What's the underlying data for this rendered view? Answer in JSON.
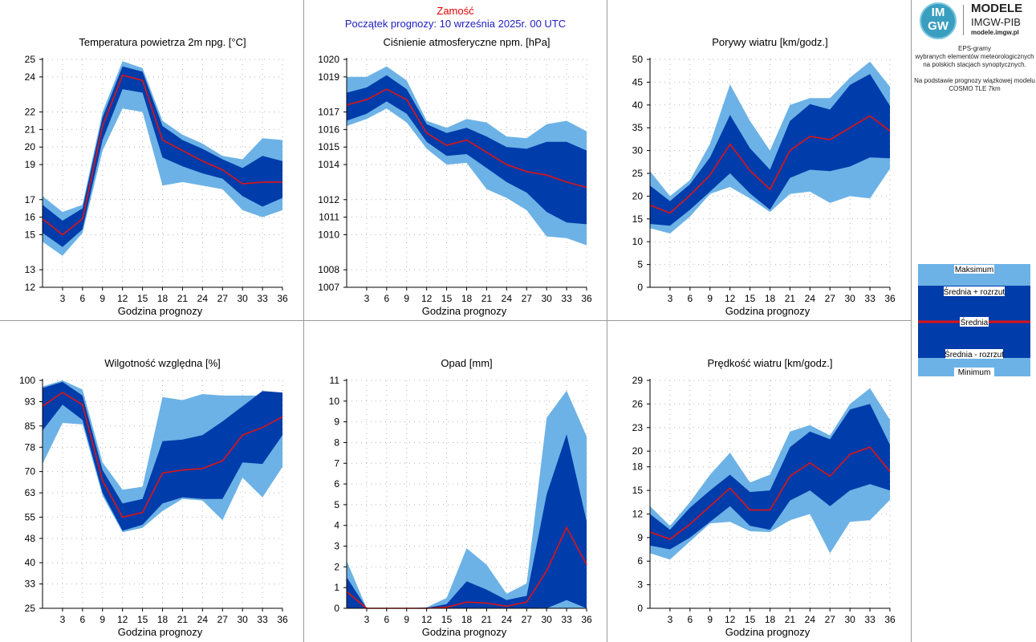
{
  "header": {
    "location": "Zamość",
    "forecast_start": "Początek prognozy: 10 września 2025r. 00 UTC"
  },
  "branding": {
    "logo_text_top": "IM",
    "logo_text_bottom": "GW",
    "name": "MODELE",
    "org": "IMGW-PIB",
    "url": "modele.imgw.pl"
  },
  "description": {
    "line1": "EPS-gramy",
    "line2": "wybranych elementów meteorologicznych",
    "line3": "na polskich stacjach synoptycznych.",
    "line4": "Na podstawie prognozy wiązkowej modelu",
    "line5": "COSMO TLE 7km"
  },
  "legend": {
    "max": "Maksimum",
    "mean_plus": "Średnia + rozrzut",
    "mean": "Średnia",
    "mean_minus": "Średnia - rozrzut",
    "min": "Minimum"
  },
  "colors": {
    "range_fill": "#6cb2e6",
    "spread_fill": "#003caa",
    "mean_line": "#e01414",
    "grid_dots": "#b4b4b4",
    "header_red": "#e00000",
    "header_blue": "#2020c0"
  },
  "chart_data": [
    {
      "type": "area",
      "title": "Temperatura powietrza 2m npg. [°C]",
      "xlabel": "Godzina prognozy",
      "x": [
        0,
        3,
        6,
        9,
        12,
        15,
        18,
        21,
        24,
        27,
        30,
        33,
        36
      ],
      "xticks": [
        3,
        6,
        9,
        12,
        15,
        18,
        21,
        24,
        27,
        30,
        33,
        36
      ],
      "ylim": [
        12,
        25
      ],
      "yticks": [
        "12",
        "13",
        "15",
        "16",
        "17",
        "19",
        "20",
        "21",
        "22",
        "24",
        "25"
      ],
      "series": [
        {
          "name": "Maksimum",
          "values": [
            17.2,
            16.3,
            16.7,
            22.0,
            24.9,
            24.5,
            21.5,
            20.7,
            20.2,
            19.5,
            19.3,
            20.5,
            20.4
          ]
        },
        {
          "name": "Średnia + rozrzut",
          "values": [
            16.7,
            15.8,
            16.5,
            21.7,
            24.6,
            24.3,
            21.2,
            20.4,
            19.9,
            19.3,
            18.8,
            19.5,
            19.2
          ]
        },
        {
          "name": "Średnia",
          "values": [
            15.9,
            15.0,
            15.9,
            21.2,
            24.1,
            23.8,
            20.4,
            19.8,
            19.2,
            18.7,
            17.9,
            18.0,
            18.0
          ]
        },
        {
          "name": "Średnia - rozrzut",
          "values": [
            15.1,
            14.3,
            15.3,
            20.4,
            23.3,
            23.1,
            19.4,
            18.9,
            18.5,
            18.2,
            17.2,
            16.6,
            17.1
          ]
        },
        {
          "name": "Minimum",
          "values": [
            14.6,
            13.8,
            15.1,
            19.8,
            22.2,
            22.0,
            17.8,
            18.0,
            17.8,
            17.6,
            16.4,
            16.0,
            16.4
          ]
        }
      ]
    },
    {
      "type": "area",
      "title": "Ciśnienie atmosferyczne npm. [hPa]",
      "xlabel": "Godzina prognozy",
      "x": [
        0,
        3,
        6,
        9,
        12,
        15,
        18,
        21,
        24,
        27,
        30,
        33,
        36
      ],
      "xticks": [
        3,
        6,
        9,
        12,
        15,
        18,
        21,
        24,
        27,
        30,
        33,
        36
      ],
      "ylim": [
        1007,
        1020
      ],
      "yticks": [
        "1007",
        "1008",
        "1010",
        "1011",
        "1012",
        "1014",
        "1015",
        "1016",
        "1017",
        "1019",
        "1020"
      ],
      "series": [
        {
          "name": "Maksimum",
          "values": [
            1019.0,
            1019.0,
            1019.6,
            1018.8,
            1016.5,
            1016.1,
            1016.6,
            1016.4,
            1015.6,
            1015.5,
            1016.3,
            1016.5,
            1015.9
          ]
        },
        {
          "name": "Średnia + rozrzut",
          "values": [
            1018.1,
            1018.4,
            1019.1,
            1018.3,
            1016.3,
            1015.8,
            1016.1,
            1015.6,
            1015.0,
            1014.9,
            1015.3,
            1015.3,
            1014.8
          ]
        },
        {
          "name": "Średnia",
          "values": [
            1017.4,
            1017.7,
            1018.3,
            1017.7,
            1015.8,
            1015.1,
            1015.4,
            1014.7,
            1014.0,
            1013.6,
            1013.4,
            1013.0,
            1012.7
          ]
        },
        {
          "name": "Średnia - rozrzut",
          "values": [
            1016.5,
            1016.9,
            1017.6,
            1016.9,
            1015.3,
            1014.5,
            1014.6,
            1013.8,
            1013.0,
            1012.4,
            1011.3,
            1010.7,
            1010.6
          ]
        },
        {
          "name": "Minimum",
          "values": [
            1016.2,
            1016.6,
            1017.2,
            1016.4,
            1014.9,
            1014.0,
            1014.1,
            1012.6,
            1012.1,
            1011.4,
            1009.9,
            1009.8,
            1009.4
          ]
        }
      ]
    },
    {
      "type": "area",
      "title": "Porywy wiatru [km/godz.]",
      "xlabel": "Godzina prognozy",
      "x": [
        0,
        3,
        6,
        9,
        12,
        15,
        18,
        21,
        24,
        27,
        30,
        33,
        36
      ],
      "xticks": [
        3,
        6,
        9,
        12,
        15,
        18,
        21,
        24,
        27,
        30,
        33,
        36
      ],
      "ylim": [
        0,
        50
      ],
      "yticks": [
        "0",
        "5",
        "10",
        "15",
        "20",
        "25",
        "30",
        "35",
        "40",
        "45",
        "50"
      ],
      "series": [
        {
          "name": "Maksimum",
          "values": [
            25.5,
            20.0,
            23.5,
            31.5,
            44.5,
            36.5,
            30.0,
            40.0,
            41.5,
            41.5,
            46.0,
            49.5,
            44.0
          ]
        },
        {
          "name": "Średnia + rozrzut",
          "values": [
            22.3,
            18.9,
            22.6,
            28.5,
            37.8,
            30.5,
            25.8,
            36.5,
            40.2,
            39.0,
            44.4,
            46.8,
            39.8
          ]
        },
        {
          "name": "Średnia",
          "values": [
            18.0,
            16.3,
            20.2,
            24.6,
            31.4,
            25.6,
            21.5,
            30.0,
            33.1,
            32.4,
            35.0,
            37.6,
            34.3
          ]
        },
        {
          "name": "Średnia - rozrzut",
          "values": [
            13.9,
            13.5,
            17.0,
            21.0,
            25.0,
            20.6,
            17.0,
            24.0,
            25.8,
            25.5,
            26.5,
            28.5,
            28.3
          ]
        },
        {
          "name": "Minimum",
          "values": [
            13.0,
            11.8,
            15.5,
            20.5,
            22.0,
            19.5,
            16.5,
            20.5,
            21.0,
            18.5,
            20.0,
            19.5,
            26.0
          ]
        }
      ]
    },
    {
      "type": "area",
      "title": "Wilgotność względna [%]",
      "xlabel": "Godzina prognozy",
      "x": [
        0,
        3,
        6,
        9,
        12,
        15,
        18,
        21,
        24,
        27,
        30,
        33,
        36
      ],
      "xticks": [
        3,
        6,
        9,
        12,
        15,
        18,
        21,
        24,
        27,
        30,
        33,
        36
      ],
      "ylim": [
        25,
        100
      ],
      "yticks": [
        "25",
        "33",
        "40",
        "48",
        "55",
        "63",
        "70",
        "78",
        "85",
        "93",
        "100"
      ],
      "series": [
        {
          "name": "Maksimum",
          "values": [
            98.0,
            100.0,
            97.0,
            73.0,
            64.0,
            65.0,
            94.5,
            93.5,
            95.5,
            95.0,
            95.0,
            95.0,
            95.5
          ]
        },
        {
          "name": "Średnia + rozrzut",
          "values": [
            97.5,
            99.5,
            95.0,
            70.5,
            59.5,
            61.0,
            80.0,
            80.5,
            82.0,
            86.5,
            91.5,
            96.5,
            96.0
          ]
        },
        {
          "name": "Średnia",
          "values": [
            91.5,
            96.0,
            92.0,
            67.0,
            55.0,
            56.5,
            69.5,
            70.5,
            71.0,
            73.5,
            82.0,
            84.5,
            88.0
          ]
        },
        {
          "name": "Średnia - rozrzut",
          "values": [
            83.5,
            92.0,
            87.0,
            63.0,
            50.5,
            52.5,
            59.5,
            61.5,
            61.0,
            61.0,
            73.0,
            72.5,
            82.0
          ]
        },
        {
          "name": "Minimum",
          "values": [
            72.5,
            86.0,
            85.5,
            62.0,
            50.0,
            51.5,
            57.0,
            61.0,
            60.5,
            54.0,
            68.0,
            61.5,
            71.5
          ]
        }
      ]
    },
    {
      "type": "area",
      "title": "Opad [mm]",
      "xlabel": "Godzina prognozy",
      "x": [
        0,
        3,
        6,
        9,
        12,
        15,
        18,
        21,
        24,
        27,
        30,
        33,
        36
      ],
      "xticks": [
        3,
        6,
        9,
        12,
        15,
        18,
        21,
        24,
        27,
        30,
        33,
        36
      ],
      "ylim": [
        0,
        11
      ],
      "yticks": [
        "0",
        "1",
        "2",
        "3",
        "4",
        "5",
        "6",
        "7",
        "8",
        "9",
        "10",
        "11"
      ],
      "series": [
        {
          "name": "Maksimum",
          "values": [
            2.3,
            0.0,
            0.0,
            0.0,
            0.05,
            0.5,
            2.9,
            2.1,
            0.7,
            1.2,
            9.2,
            10.5,
            8.3
          ]
        },
        {
          "name": "Średnia + rozrzut",
          "values": [
            1.5,
            0.0,
            0.0,
            0.0,
            0.02,
            0.2,
            1.3,
            0.9,
            0.4,
            0.6,
            5.5,
            8.4,
            4.2
          ]
        },
        {
          "name": "Średnia",
          "values": [
            0.8,
            0.0,
            0.0,
            0.0,
            0.0,
            0.05,
            0.3,
            0.25,
            0.1,
            0.3,
            1.8,
            3.9,
            2.1
          ]
        },
        {
          "name": "Średnia - rozrzut",
          "values": [
            0.0,
            0.0,
            0.0,
            0.0,
            0.0,
            0.0,
            0.0,
            0.0,
            0.0,
            0.0,
            0.0,
            0.4,
            0.0
          ]
        },
        {
          "name": "Minimum",
          "values": [
            0.0,
            0.0,
            0.0,
            0.0,
            0.0,
            0.0,
            0.0,
            0.0,
            0.0,
            0.0,
            0.0,
            0.0,
            0.0
          ]
        }
      ]
    },
    {
      "type": "area",
      "title": "Prędkość wiatru [km/godz.]",
      "xlabel": "Godzina prognozy",
      "x": [
        0,
        3,
        6,
        9,
        12,
        15,
        18,
        21,
        24,
        27,
        30,
        33,
        36
      ],
      "xticks": [
        3,
        6,
        9,
        12,
        15,
        18,
        21,
        24,
        27,
        30,
        33,
        36
      ],
      "ylim": [
        0,
        29
      ],
      "yticks": [
        "0",
        "3",
        "6",
        "9",
        "12",
        "15",
        "18",
        "20",
        "23",
        "26",
        "29"
      ],
      "series": [
        {
          "name": "Maksimum",
          "values": [
            13.0,
            10.5,
            13.5,
            17.0,
            19.8,
            16.0,
            17.0,
            22.5,
            23.3,
            22.0,
            26.0,
            28.0,
            24.0
          ]
        },
        {
          "name": "Średnia + rozrzut",
          "values": [
            12.0,
            10.0,
            12.8,
            15.0,
            17.0,
            14.8,
            15.0,
            20.5,
            22.5,
            21.5,
            25.3,
            26.0,
            20.8
          ]
        },
        {
          "name": "Średnia",
          "values": [
            9.7,
            8.8,
            10.7,
            13.0,
            15.3,
            12.5,
            12.5,
            16.8,
            18.5,
            16.8,
            19.6,
            20.5,
            17.4
          ]
        },
        {
          "name": "Średnia - rozrzut",
          "values": [
            8.0,
            7.5,
            9.0,
            11.0,
            13.0,
            10.5,
            10.0,
            13.7,
            15.0,
            13.0,
            15.0,
            15.8,
            15.0
          ]
        },
        {
          "name": "Minimum",
          "values": [
            7.0,
            6.2,
            8.5,
            10.8,
            11.0,
            9.8,
            9.7,
            11.2,
            12.0,
            7.0,
            11.0,
            11.2,
            13.8
          ]
        }
      ]
    }
  ]
}
